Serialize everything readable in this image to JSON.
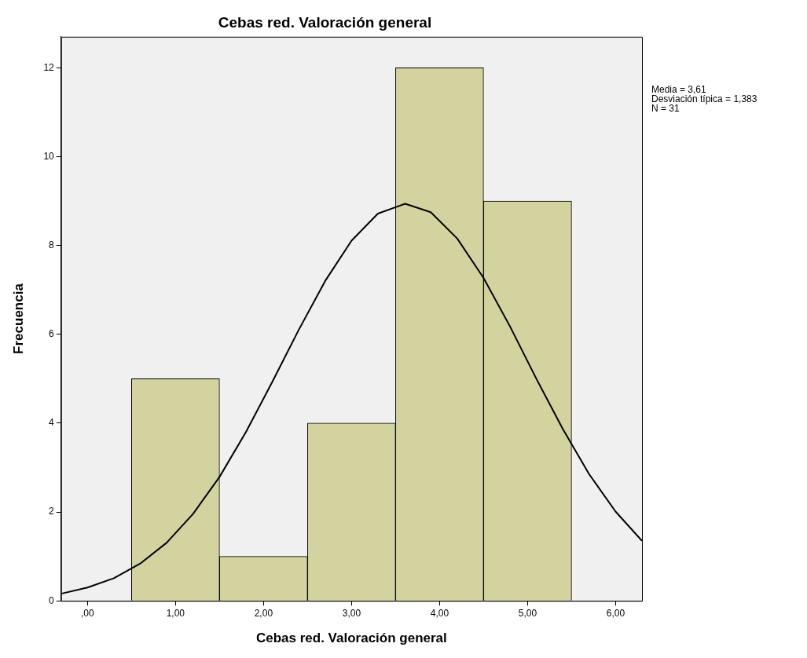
{
  "chart_data": {
    "type": "histogram",
    "title": "Cebas red. Valoración general",
    "xlabel": "Cebas red. Valoración general",
    "ylabel": "Frecuencia",
    "bins": [
      0.5,
      1.5,
      2.5,
      3.5,
      4.5,
      5.5
    ],
    "values": [
      5,
      1,
      4,
      12,
      9
    ],
    "color": "#d3d3a0",
    "series": [
      {
        "type": "line",
        "color": "#000000",
        "x": [
          -0.3,
          0,
          0.3,
          0.6,
          0.9,
          1.2,
          1.5,
          1.8,
          2.1,
          2.4,
          2.7,
          3.0,
          3.3,
          3.61,
          3.9,
          4.2,
          4.5,
          4.8,
          5.1,
          5.4,
          5.7,
          6.0,
          6.3
        ],
        "values": [
          0.16,
          0.3,
          0.51,
          0.84,
          1.31,
          1.96,
          2.79,
          3.8,
          4.93,
          6.1,
          7.2,
          8.11,
          8.72,
          8.94,
          8.75,
          8.16,
          7.27,
          6.18,
          5.0,
          3.87,
          2.85,
          2.01,
          1.35
        ]
      }
    ],
    "xlim": [
      -0.3,
      6.3
    ],
    "xticks": [
      {
        "value": 0,
        "label": ",00"
      },
      {
        "value": 1,
        "label": "1,00"
      },
      {
        "value": 2,
        "label": "2,00"
      },
      {
        "value": 3,
        "label": "3,00"
      },
      {
        "value": 4,
        "label": "4,00"
      },
      {
        "value": 5,
        "label": "5,00"
      },
      {
        "value": 6,
        "label": "6,00"
      }
    ],
    "ylim": [
      0,
      12.7
    ],
    "yticks": [
      0,
      2,
      4,
      6,
      8,
      10,
      12
    ],
    "grid": false,
    "legend": false,
    "marker": "none",
    "line_style": "solid",
    "annotations": [
      "Media = 3,61",
      "Desviación típica = 1,383",
      "N = 31"
    ]
  }
}
